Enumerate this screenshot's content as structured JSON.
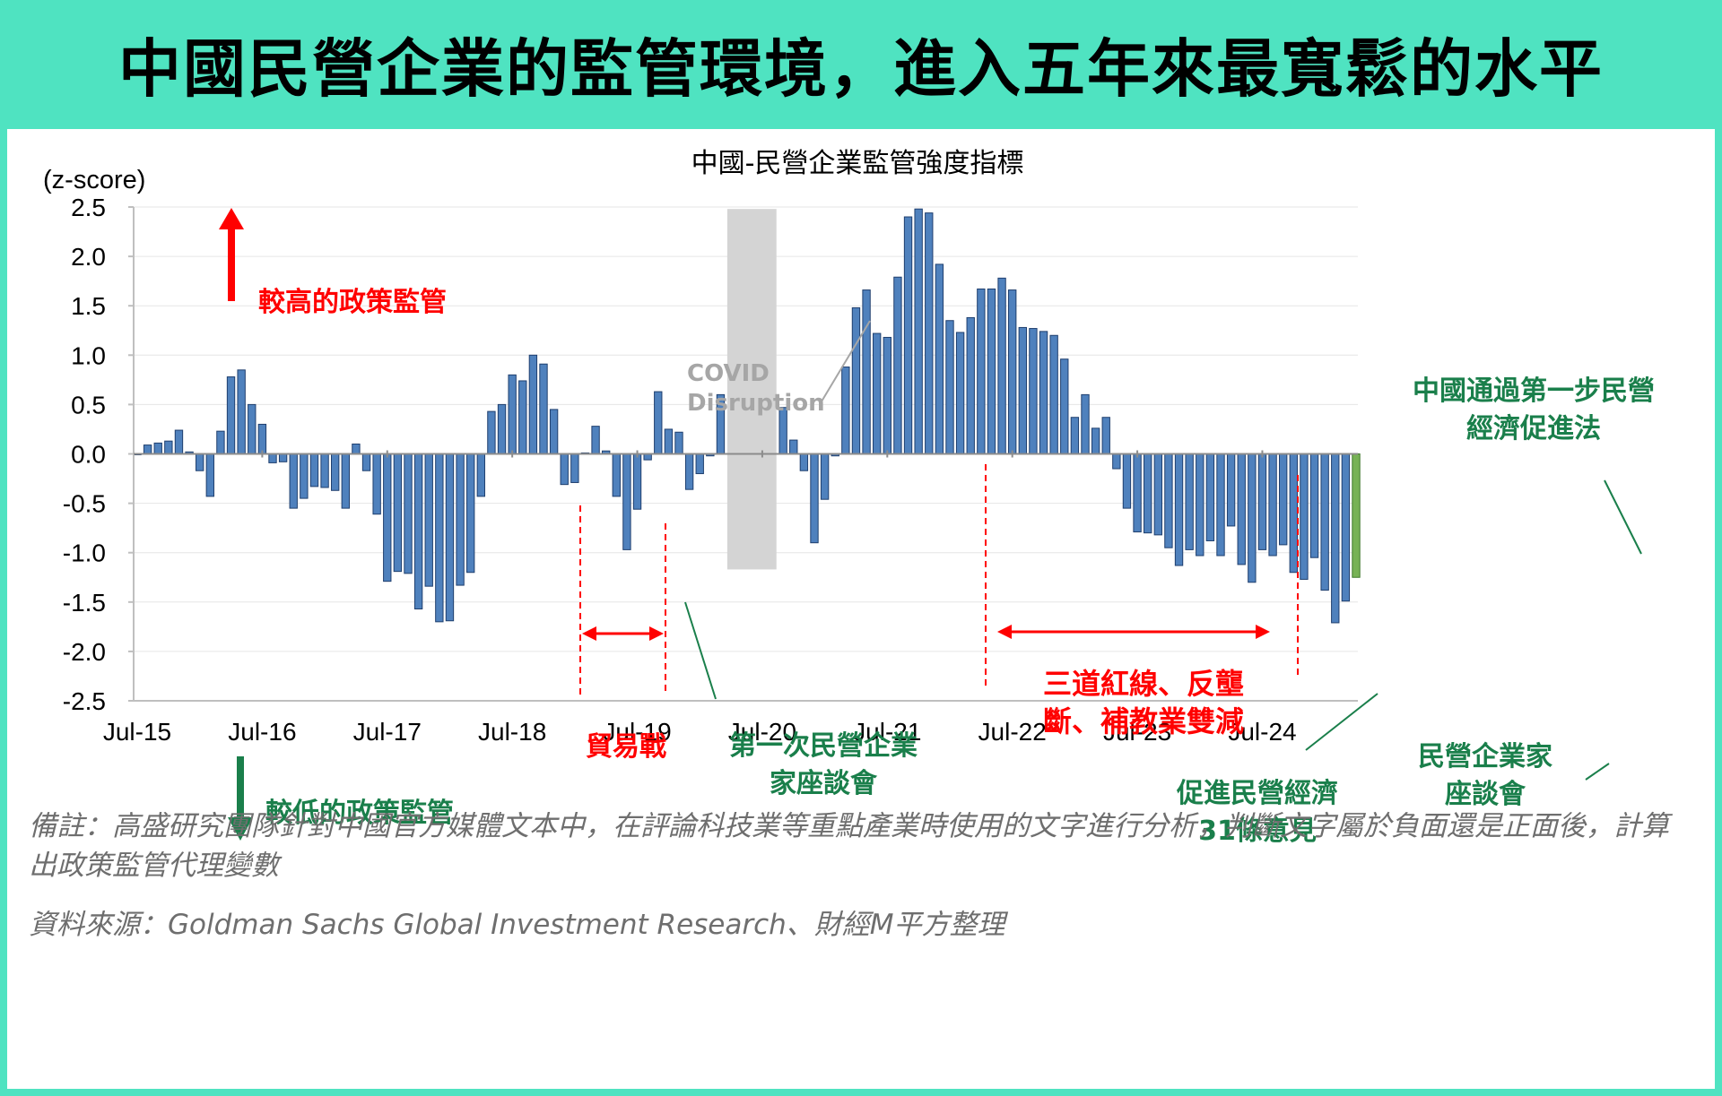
{
  "header": {
    "title": "中國民營企業的監管環境，進入五年來最寬鬆的水平"
  },
  "chart_data": {
    "type": "bar",
    "title": "中國-民營企業監管強度指標",
    "ylabel": "(z-score)",
    "ylim": [
      -2.5,
      2.5
    ],
    "yticks": [
      "2.5",
      "2.0",
      "1.5",
      "1.0",
      "0.5",
      "0.0",
      "-0.5",
      "-1.0",
      "-1.5",
      "-2.0",
      "-2.5"
    ],
    "yticks_values": [
      2.5,
      2.0,
      1.5,
      1.0,
      0.5,
      0.0,
      -0.5,
      -1.0,
      -1.5,
      -2.0,
      -2.5
    ],
    "xtick_labels": [
      "Jul-15",
      "Jul-16",
      "Jul-17",
      "Jul-18",
      "Jul-19",
      "Jul-20",
      "Jul-21",
      "Jul-22",
      "Jul-23",
      "Jul-24"
    ],
    "x_start": "Jul-15",
    "grid": true,
    "bar_color": "#4f81bd",
    "bar_edge": "#1f3f6e",
    "highlight_color": "#77b255",
    "values": [
      0.0,
      0.09,
      0.11,
      0.13,
      0.24,
      0.02,
      -0.17,
      -0.43,
      0.23,
      0.78,
      0.85,
      0.5,
      0.3,
      -0.09,
      -0.08,
      -0.55,
      -0.45,
      -0.33,
      -0.34,
      -0.37,
      -0.55,
      0.1,
      -0.17,
      -0.61,
      -1.29,
      -1.19,
      -1.21,
      -1.57,
      -1.34,
      -1.7,
      -1.69,
      -1.33,
      -1.2,
      -0.43,
      0.43,
      0.5,
      0.8,
      0.74,
      1.0,
      0.91,
      0.45,
      -0.31,
      -0.29,
      0.01,
      0.28,
      0.03,
      -0.43,
      -0.97,
      -0.56,
      -0.06,
      0.63,
      0.25,
      0.22,
      -0.36,
      -0.2,
      -0.02,
      0.6,
      null,
      null,
      null,
      null,
      null,
      0.47,
      0.14,
      -0.17,
      -0.9,
      -0.46,
      -0.02,
      0.88,
      1.48,
      1.66,
      1.22,
      1.18,
      1.79,
      2.4,
      2.48,
      2.44,
      1.92,
      1.35,
      1.23,
      1.38,
      1.67,
      1.67,
      1.78,
      1.66,
      1.28,
      1.27,
      1.24,
      1.2,
      0.96,
      0.37,
      0.6,
      0.26,
      0.37,
      -0.15,
      -0.55,
      -0.79,
      -0.8,
      -0.82,
      -0.95,
      -1.13,
      -0.97,
      -1.03,
      -0.88,
      -1.03,
      -0.73,
      -1.12,
      -1.3,
      -0.97,
      -1.03,
      -0.92,
      -1.2,
      -1.27,
      -1.05,
      -1.38,
      -1.71,
      -1.49,
      -1.25
    ],
    "shaded_region": {
      "label": "COVID Disruption",
      "from_index": 57,
      "to_index": 61
    },
    "annotations": {
      "high": "較高的政策監管",
      "low": "較低的政策監管",
      "trade_war": "貿易戰",
      "symposium_1": "第一次民營企業家座談會",
      "three_red_lines": "三道紅線、反壟斷、補教業雙減",
      "opinions_31": "促進民營經濟31條意見",
      "symposium_2": "民營企業家座談會",
      "law_passed": "中國通過第一步民營經濟促進法",
      "covid": "COVID Disruption"
    }
  },
  "notes": {
    "remark": "備註：高盛研究團隊針對中國官方媒體文本中，在評論科技業等重點產業時使用的文字進行分析，判斷文字屬於負面還是正面後，計算出政策監管代理變數",
    "source": "資料來源：Goldman Sachs Global Investment Research、財經M平方整理"
  },
  "colors": {
    "background": "#4fe3c1",
    "red": "#ff0000",
    "green": "#1a7f4b"
  }
}
